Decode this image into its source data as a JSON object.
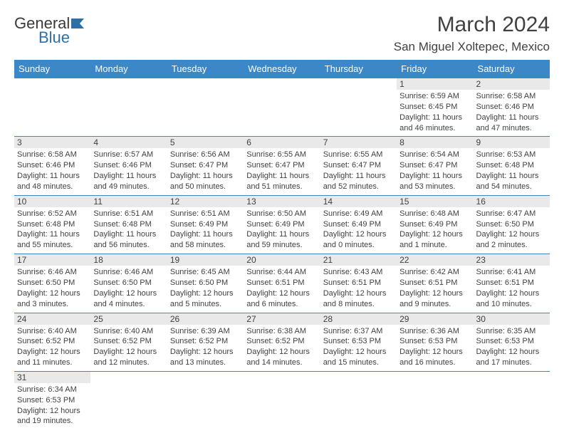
{
  "branding": {
    "logo_primary": "General",
    "logo_secondary": "Blue",
    "logo_primary_color": "#3a3a3a",
    "logo_secondary_color": "#2f6fa8",
    "logo_flag_color": "#2f6fa8"
  },
  "header": {
    "title": "March 2024",
    "location": "San Miguel Xoltepec, Mexico"
  },
  "theme": {
    "header_bg": "#3b87c8",
    "header_fg": "#ffffff",
    "cell_border": "#3b87c8",
    "daynum_bg": "#e9e9e9",
    "text_color": "#414141",
    "page_bg": "#ffffff"
  },
  "weekdays": [
    "Sunday",
    "Monday",
    "Tuesday",
    "Wednesday",
    "Thursday",
    "Friday",
    "Saturday"
  ],
  "weeks": [
    [
      null,
      null,
      null,
      null,
      null,
      {
        "n": "1",
        "sunrise": "Sunrise: 6:59 AM",
        "sunset": "Sunset: 6:45 PM",
        "daylight": "Daylight: 11 hours and 46 minutes."
      },
      {
        "n": "2",
        "sunrise": "Sunrise: 6:58 AM",
        "sunset": "Sunset: 6:46 PM",
        "daylight": "Daylight: 11 hours and 47 minutes."
      }
    ],
    [
      {
        "n": "3",
        "sunrise": "Sunrise: 6:58 AM",
        "sunset": "Sunset: 6:46 PM",
        "daylight": "Daylight: 11 hours and 48 minutes."
      },
      {
        "n": "4",
        "sunrise": "Sunrise: 6:57 AM",
        "sunset": "Sunset: 6:46 PM",
        "daylight": "Daylight: 11 hours and 49 minutes."
      },
      {
        "n": "5",
        "sunrise": "Sunrise: 6:56 AM",
        "sunset": "Sunset: 6:47 PM",
        "daylight": "Daylight: 11 hours and 50 minutes."
      },
      {
        "n": "6",
        "sunrise": "Sunrise: 6:55 AM",
        "sunset": "Sunset: 6:47 PM",
        "daylight": "Daylight: 11 hours and 51 minutes."
      },
      {
        "n": "7",
        "sunrise": "Sunrise: 6:55 AM",
        "sunset": "Sunset: 6:47 PM",
        "daylight": "Daylight: 11 hours and 52 minutes."
      },
      {
        "n": "8",
        "sunrise": "Sunrise: 6:54 AM",
        "sunset": "Sunset: 6:47 PM",
        "daylight": "Daylight: 11 hours and 53 minutes."
      },
      {
        "n": "9",
        "sunrise": "Sunrise: 6:53 AM",
        "sunset": "Sunset: 6:48 PM",
        "daylight": "Daylight: 11 hours and 54 minutes."
      }
    ],
    [
      {
        "n": "10",
        "sunrise": "Sunrise: 6:52 AM",
        "sunset": "Sunset: 6:48 PM",
        "daylight": "Daylight: 11 hours and 55 minutes."
      },
      {
        "n": "11",
        "sunrise": "Sunrise: 6:51 AM",
        "sunset": "Sunset: 6:48 PM",
        "daylight": "Daylight: 11 hours and 56 minutes."
      },
      {
        "n": "12",
        "sunrise": "Sunrise: 6:51 AM",
        "sunset": "Sunset: 6:49 PM",
        "daylight": "Daylight: 11 hours and 58 minutes."
      },
      {
        "n": "13",
        "sunrise": "Sunrise: 6:50 AM",
        "sunset": "Sunset: 6:49 PM",
        "daylight": "Daylight: 11 hours and 59 minutes."
      },
      {
        "n": "14",
        "sunrise": "Sunrise: 6:49 AM",
        "sunset": "Sunset: 6:49 PM",
        "daylight": "Daylight: 12 hours and 0 minutes."
      },
      {
        "n": "15",
        "sunrise": "Sunrise: 6:48 AM",
        "sunset": "Sunset: 6:49 PM",
        "daylight": "Daylight: 12 hours and 1 minute."
      },
      {
        "n": "16",
        "sunrise": "Sunrise: 6:47 AM",
        "sunset": "Sunset: 6:50 PM",
        "daylight": "Daylight: 12 hours and 2 minutes."
      }
    ],
    [
      {
        "n": "17",
        "sunrise": "Sunrise: 6:46 AM",
        "sunset": "Sunset: 6:50 PM",
        "daylight": "Daylight: 12 hours and 3 minutes."
      },
      {
        "n": "18",
        "sunrise": "Sunrise: 6:46 AM",
        "sunset": "Sunset: 6:50 PM",
        "daylight": "Daylight: 12 hours and 4 minutes."
      },
      {
        "n": "19",
        "sunrise": "Sunrise: 6:45 AM",
        "sunset": "Sunset: 6:50 PM",
        "daylight": "Daylight: 12 hours and 5 minutes."
      },
      {
        "n": "20",
        "sunrise": "Sunrise: 6:44 AM",
        "sunset": "Sunset: 6:51 PM",
        "daylight": "Daylight: 12 hours and 6 minutes."
      },
      {
        "n": "21",
        "sunrise": "Sunrise: 6:43 AM",
        "sunset": "Sunset: 6:51 PM",
        "daylight": "Daylight: 12 hours and 8 minutes."
      },
      {
        "n": "22",
        "sunrise": "Sunrise: 6:42 AM",
        "sunset": "Sunset: 6:51 PM",
        "daylight": "Daylight: 12 hours and 9 minutes."
      },
      {
        "n": "23",
        "sunrise": "Sunrise: 6:41 AM",
        "sunset": "Sunset: 6:51 PM",
        "daylight": "Daylight: 12 hours and 10 minutes."
      }
    ],
    [
      {
        "n": "24",
        "sunrise": "Sunrise: 6:40 AM",
        "sunset": "Sunset: 6:52 PM",
        "daylight": "Daylight: 12 hours and 11 minutes."
      },
      {
        "n": "25",
        "sunrise": "Sunrise: 6:40 AM",
        "sunset": "Sunset: 6:52 PM",
        "daylight": "Daylight: 12 hours and 12 minutes."
      },
      {
        "n": "26",
        "sunrise": "Sunrise: 6:39 AM",
        "sunset": "Sunset: 6:52 PM",
        "daylight": "Daylight: 12 hours and 13 minutes."
      },
      {
        "n": "27",
        "sunrise": "Sunrise: 6:38 AM",
        "sunset": "Sunset: 6:52 PM",
        "daylight": "Daylight: 12 hours and 14 minutes."
      },
      {
        "n": "28",
        "sunrise": "Sunrise: 6:37 AM",
        "sunset": "Sunset: 6:53 PM",
        "daylight": "Daylight: 12 hours and 15 minutes."
      },
      {
        "n": "29",
        "sunrise": "Sunrise: 6:36 AM",
        "sunset": "Sunset: 6:53 PM",
        "daylight": "Daylight: 12 hours and 16 minutes."
      },
      {
        "n": "30",
        "sunrise": "Sunrise: 6:35 AM",
        "sunset": "Sunset: 6:53 PM",
        "daylight": "Daylight: 12 hours and 17 minutes."
      }
    ],
    [
      {
        "n": "31",
        "sunrise": "Sunrise: 6:34 AM",
        "sunset": "Sunset: 6:53 PM",
        "daylight": "Daylight: 12 hours and 19 minutes."
      },
      null,
      null,
      null,
      null,
      null,
      null
    ]
  ]
}
